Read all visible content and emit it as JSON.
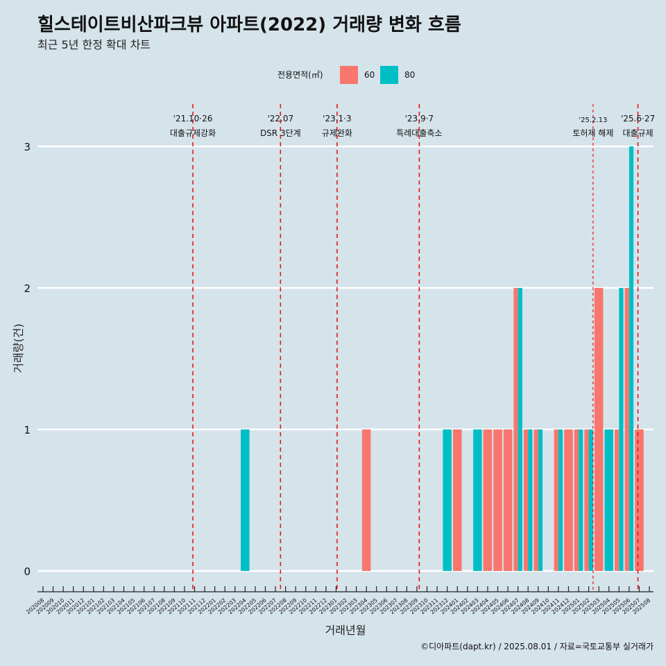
{
  "title": "힐스테이트비산파크뷰 아파트(2022) 거래량 변화 흐름",
  "subtitle": "최근 5년 한정 확대 차트",
  "caption": "©디아파트(dapt.kr) / 2025.08.01 / 자료=국토교통부 실거래가",
  "colors": {
    "background": "#d5e3ea",
    "s60": "#f8766d",
    "s80": "#00bfc4",
    "event_line": "#e8141c",
    "grid": "#ffffff"
  },
  "chart_data": {
    "type": "bar",
    "xlabel": "거래년월",
    "ylabel": "거래량(건)",
    "ylim": [
      0,
      3
    ],
    "yticks": [
      "0",
      "1",
      "2",
      "3"
    ],
    "grid": true,
    "legend": {
      "title": "전용면적(㎡)",
      "position": "top"
    },
    "categories": [
      "202008",
      "202009",
      "202010",
      "202011",
      "202012",
      "202101",
      "202102",
      "202103",
      "202104",
      "202105",
      "202106",
      "202107",
      "202108",
      "202109",
      "202110",
      "202111",
      "202112",
      "202201",
      "202202",
      "202203",
      "202204",
      "202205",
      "202206",
      "202207",
      "202208",
      "202209",
      "202210",
      "202211",
      "202212",
      "202301",
      "202302",
      "202303",
      "202304",
      "202305",
      "202306",
      "202307",
      "202308",
      "202309",
      "202310",
      "202311",
      "202312",
      "202401",
      "202402",
      "202403",
      "202404",
      "202405",
      "202406",
      "202407",
      "202408",
      "202409",
      "202410",
      "202411",
      "202412",
      "202501",
      "202502",
      "202503",
      "202504",
      "202505",
      "202506",
      "202507",
      "202508"
    ],
    "series": [
      {
        "name": "60",
        "points": [
          {
            "x": "202304",
            "y": 1
          },
          {
            "x": "202401",
            "y": 1
          },
          {
            "x": "202404",
            "y": 1
          },
          {
            "x": "202405",
            "y": 1
          },
          {
            "x": "202406",
            "y": 1
          },
          {
            "x": "202407",
            "y": 2
          },
          {
            "x": "202408",
            "y": 1
          },
          {
            "x": "202409",
            "y": 1
          },
          {
            "x": "202411",
            "y": 1
          },
          {
            "x": "202412",
            "y": 1
          },
          {
            "x": "202501",
            "y": 1
          },
          {
            "x": "202502",
            "y": 1
          },
          {
            "x": "202503",
            "y": 2
          },
          {
            "x": "202505",
            "y": 1
          },
          {
            "x": "202506",
            "y": 2
          },
          {
            "x": "202507",
            "y": 1
          }
        ]
      },
      {
        "name": "80",
        "points": [
          {
            "x": "202204",
            "y": 1
          },
          {
            "x": "202312",
            "y": 1
          },
          {
            "x": "202403",
            "y": 1
          },
          {
            "x": "202407",
            "y": 2
          },
          {
            "x": "202408",
            "y": 1
          },
          {
            "x": "202409",
            "y": 1
          },
          {
            "x": "202411",
            "y": 1
          },
          {
            "x": "202501",
            "y": 1
          },
          {
            "x": "202502",
            "y": 1
          },
          {
            "x": "202504",
            "y": 1
          },
          {
            "x": "202505",
            "y": 2
          },
          {
            "x": "202506",
            "y": 3
          }
        ]
      }
    ],
    "events": [
      {
        "x": "202110.83",
        "date": "'21.10·26",
        "label": "대출규제강화",
        "small": false,
        "dash": "6,5"
      },
      {
        "x": "202207.5",
        "date": "'22.07",
        "label": "DSR 3단계",
        "small": false,
        "dash": "6,5"
      },
      {
        "x": "202301.1",
        "date": "'23.1·3",
        "label": "규제완화",
        "small": false,
        "dash": "6,5"
      },
      {
        "x": "202309.23",
        "date": "'23.9·7",
        "label": "특례대출축소",
        "small": false,
        "dash": "6,5"
      },
      {
        "x": "202502.43",
        "date": "'25.2.13",
        "label": "토허제 해제",
        "small": true,
        "dash": "4,4"
      },
      {
        "x": "202506.87",
        "date": "'25.6·27",
        "label": "대출규제",
        "small": false,
        "dash": "6,5"
      }
    ]
  }
}
